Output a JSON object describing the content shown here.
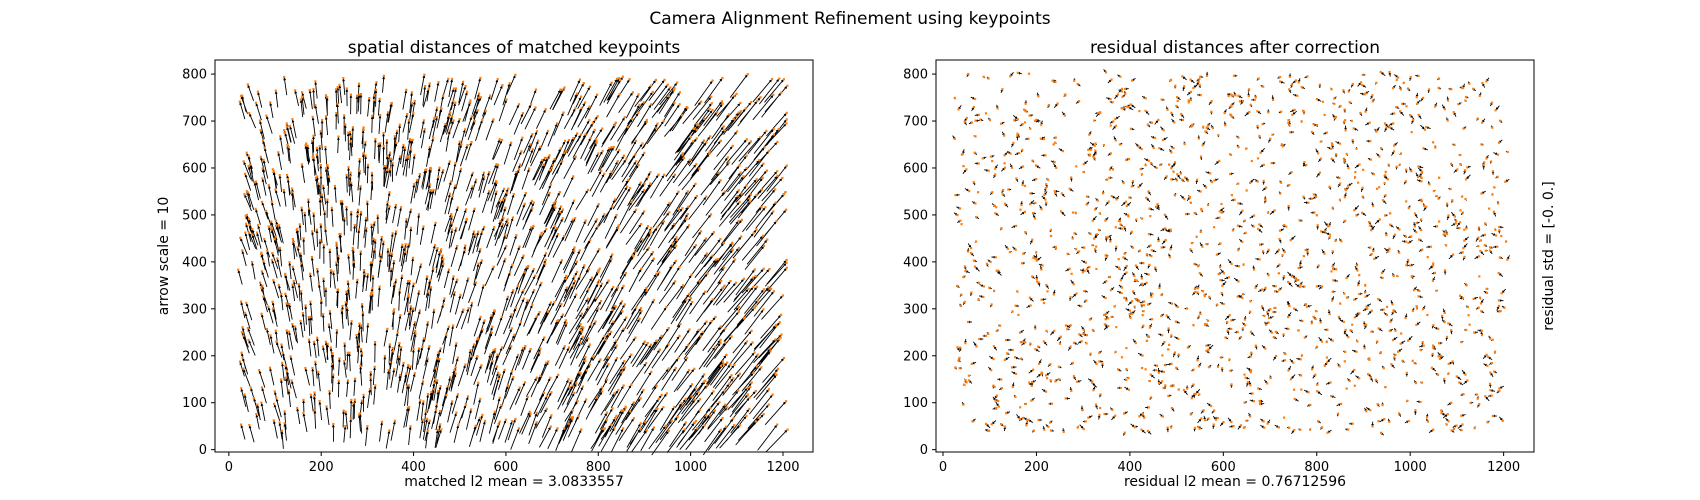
{
  "figure": {
    "suptitle": "Camera Alignment Refinement using keypoints"
  },
  "colors": {
    "arrow": "#000000",
    "keypoint": "#ff7f0e",
    "axes": "#000000",
    "background": "#ffffff"
  },
  "chart_data": [
    {
      "type": "quiver",
      "title": "spatial distances of matched keypoints",
      "xlabel": "matched l2 mean = 3.0833557",
      "ylabel": "arrow scale = 10",
      "xlim": [
        -30,
        1265
      ],
      "ylim": [
        -5,
        830
      ],
      "xticks": [
        0,
        200,
        400,
        600,
        800,
        1000,
        1200
      ],
      "yticks": [
        0,
        100,
        200,
        300,
        400,
        500,
        600,
        700,
        800
      ],
      "field": {
        "description": "matched keypoint displacement vectors drawn with arrow scale 10",
        "mean_dx": 1.7,
        "mean_dy": 3.9,
        "dx_range": [
          -1.2,
          4.6
        ],
        "dy_range": [
          1.5,
          5.2
        ],
        "x_extent": [
          20,
          1210
        ],
        "y_extent": [
          40,
          800
        ]
      },
      "grid": false,
      "legend": "none"
    },
    {
      "type": "quiver",
      "title": "residual distances after correction",
      "xlabel": "residual l2 mean = 0.76712596",
      "ylabel": "residual std = [-0.  0.]",
      "ylabel_side": "right",
      "xlim": [
        -15,
        1265
      ],
      "ylim": [
        -5,
        830
      ],
      "xticks": [
        0,
        200,
        400,
        600,
        800,
        1000,
        1200
      ],
      "yticks": [
        0,
        100,
        200,
        300,
        400,
        500,
        600,
        700,
        800
      ],
      "field": {
        "description": "residual displacement vectors after correction, arrow scale 10",
        "mean_dx": 0.0,
        "mean_dy": 0.0,
        "dx_range": [
          -1.0,
          1.0
        ],
        "dy_range": [
          -1.0,
          1.0
        ],
        "x_extent": [
          25,
          1210
        ],
        "y_extent": [
          35,
          805
        ]
      },
      "grid": false,
      "legend": "none"
    }
  ]
}
